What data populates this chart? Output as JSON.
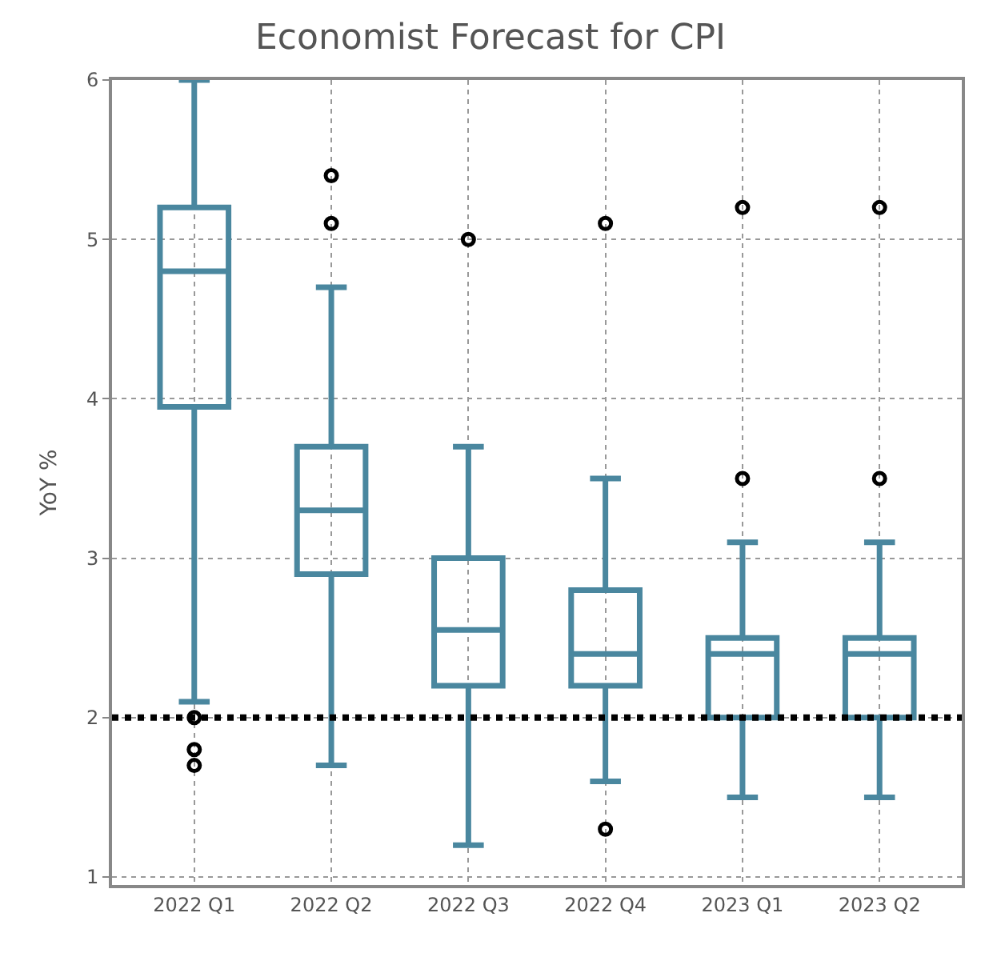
{
  "chart_data": {
    "type": "box",
    "title": "Economist Forecast for CPI",
    "ylabel": "YoY %",
    "categories": [
      "2022 Q1",
      "2022 Q2",
      "2022 Q3",
      "2022 Q4",
      "2023 Q1",
      "2023 Q2"
    ],
    "color": "#4a879f",
    "boxes": [
      {
        "low": 2.1,
        "q1": 3.95,
        "median": 4.8,
        "q3": 5.2,
        "high": 6,
        "outliers": [
          2.0,
          1.8,
          1.7
        ]
      },
      {
        "low": 1.7,
        "q1": 2.9,
        "median": 3.3,
        "q3": 3.7,
        "high": 4.7,
        "outliers": [
          5.1,
          5.4
        ]
      },
      {
        "low": 1.2,
        "q1": 2.2,
        "median": 2.55,
        "q3": 3.0,
        "high": 3.7,
        "outliers": [
          5.0
        ]
      },
      {
        "low": 1.6,
        "q1": 2.2,
        "median": 2.4,
        "q3": 2.8,
        "high": 3.5,
        "outliers": [
          1.3,
          5.1
        ]
      },
      {
        "low": 1.5,
        "q1": 2.0,
        "median": 2.4,
        "q3": 2.5,
        "high": 3.1,
        "outliers": [
          3.5,
          5.2
        ]
      },
      {
        "low": 1.5,
        "q1": 2.0,
        "median": 2.4,
        "q3": 2.5,
        "high": 3.1,
        "outliers": [
          3.5,
          5.2
        ]
      }
    ],
    "ylim": [
      0.95,
      6
    ],
    "yticks": [
      1,
      2,
      3,
      4,
      5,
      6
    ],
    "grid": true,
    "ref_lines": [
      {
        "axis": "y",
        "value": 2,
        "color": "#000000",
        "line_style": "dotted"
      }
    ]
  }
}
